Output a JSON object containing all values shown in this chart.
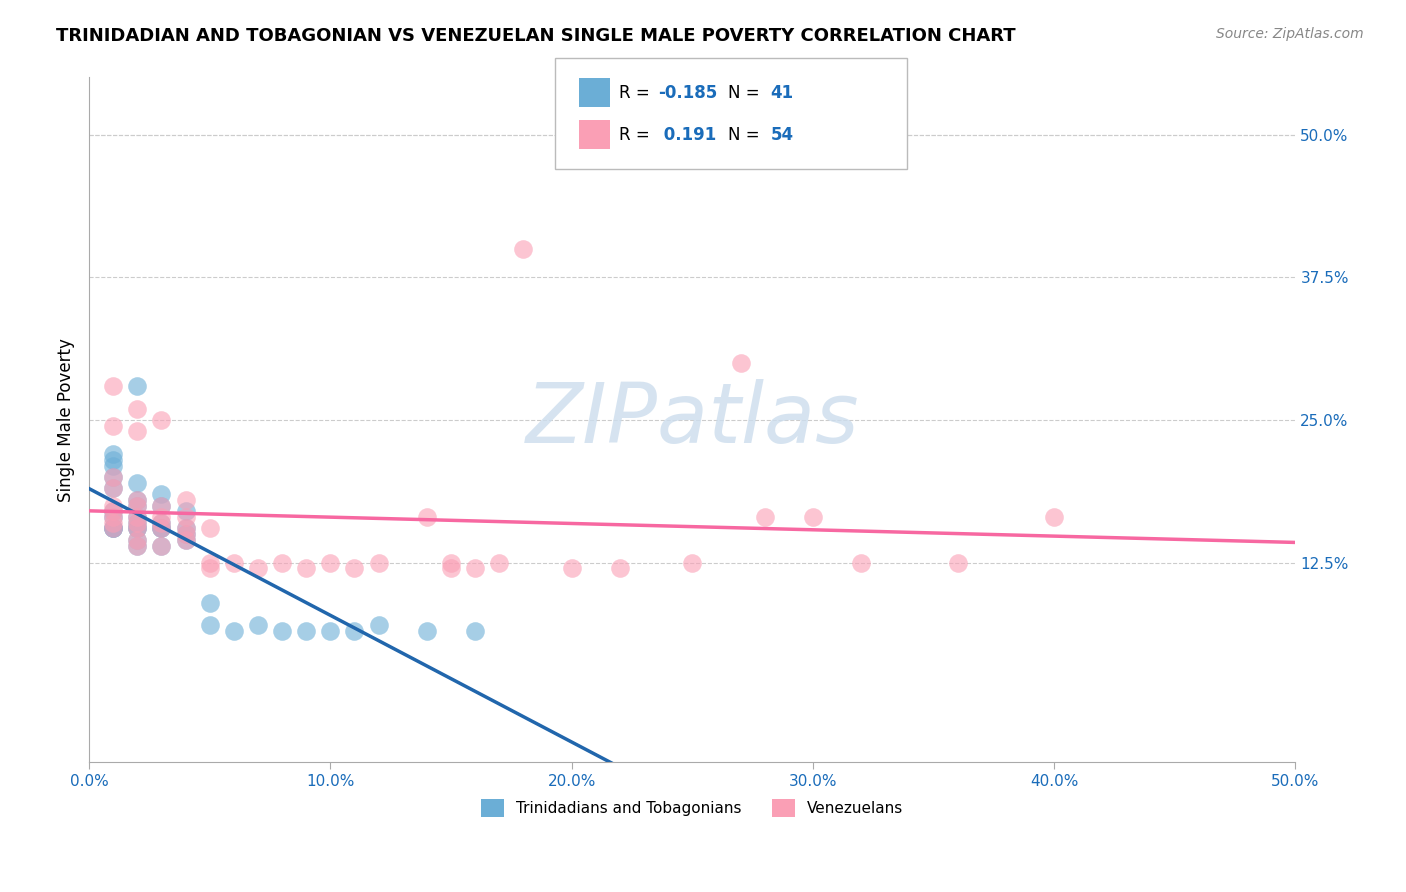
{
  "title": "TRINIDADIAN AND TOBAGONIAN VS VENEZUELAN SINGLE MALE POVERTY CORRELATION CHART",
  "source": "Source: ZipAtlas.com",
  "ylabel": "Single Male Poverty",
  "y_ticks": [
    "50.0%",
    "37.5%",
    "25.0%",
    "12.5%"
  ],
  "y_ticks_vals": [
    0.5,
    0.375,
    0.25,
    0.125
  ],
  "xlim": [
    0.0,
    0.5
  ],
  "ylim": [
    -0.05,
    0.55
  ],
  "color_blue": "#6baed6",
  "color_pink": "#fa9fb5",
  "color_blue_line": "#2166ac",
  "color_pink_line": "#f768a1",
  "tt_x": [
    0.01,
    0.01,
    0.01,
    0.01,
    0.01,
    0.01,
    0.01,
    0.01,
    0.01,
    0.01,
    0.02,
    0.02,
    0.02,
    0.02,
    0.02,
    0.02,
    0.02,
    0.02,
    0.02,
    0.02,
    0.03,
    0.03,
    0.03,
    0.03,
    0.03,
    0.03,
    0.04,
    0.04,
    0.04,
    0.04,
    0.05,
    0.05,
    0.06,
    0.07,
    0.08,
    0.09,
    0.1,
    0.11,
    0.12,
    0.14,
    0.16
  ],
  "tt_y": [
    0.155,
    0.155,
    0.155,
    0.165,
    0.17,
    0.19,
    0.2,
    0.21,
    0.215,
    0.22,
    0.14,
    0.145,
    0.155,
    0.155,
    0.16,
    0.165,
    0.175,
    0.18,
    0.195,
    0.28,
    0.14,
    0.155,
    0.155,
    0.16,
    0.175,
    0.185,
    0.145,
    0.15,
    0.155,
    0.17,
    0.07,
    0.09,
    0.065,
    0.07,
    0.065,
    0.065,
    0.065,
    0.065,
    0.07,
    0.065,
    0.065
  ],
  "vz_x": [
    0.01,
    0.01,
    0.01,
    0.01,
    0.01,
    0.01,
    0.01,
    0.01,
    0.01,
    0.02,
    0.02,
    0.02,
    0.02,
    0.02,
    0.02,
    0.02,
    0.02,
    0.02,
    0.03,
    0.03,
    0.03,
    0.03,
    0.03,
    0.03,
    0.04,
    0.04,
    0.04,
    0.04,
    0.04,
    0.05,
    0.05,
    0.05,
    0.06,
    0.07,
    0.08,
    0.09,
    0.1,
    0.11,
    0.12,
    0.14,
    0.15,
    0.15,
    0.16,
    0.17,
    0.18,
    0.2,
    0.22,
    0.25,
    0.27,
    0.28,
    0.3,
    0.32,
    0.36,
    0.4
  ],
  "vz_y": [
    0.155,
    0.16,
    0.165,
    0.17,
    0.175,
    0.19,
    0.2,
    0.245,
    0.28,
    0.14,
    0.145,
    0.155,
    0.16,
    0.165,
    0.175,
    0.18,
    0.24,
    0.26,
    0.14,
    0.155,
    0.16,
    0.165,
    0.175,
    0.25,
    0.145,
    0.15,
    0.155,
    0.165,
    0.18,
    0.12,
    0.125,
    0.155,
    0.125,
    0.12,
    0.125,
    0.12,
    0.125,
    0.12,
    0.125,
    0.165,
    0.12,
    0.125,
    0.12,
    0.125,
    0.4,
    0.12,
    0.12,
    0.125,
    0.3,
    0.165,
    0.165,
    0.125,
    0.125,
    0.165
  ]
}
